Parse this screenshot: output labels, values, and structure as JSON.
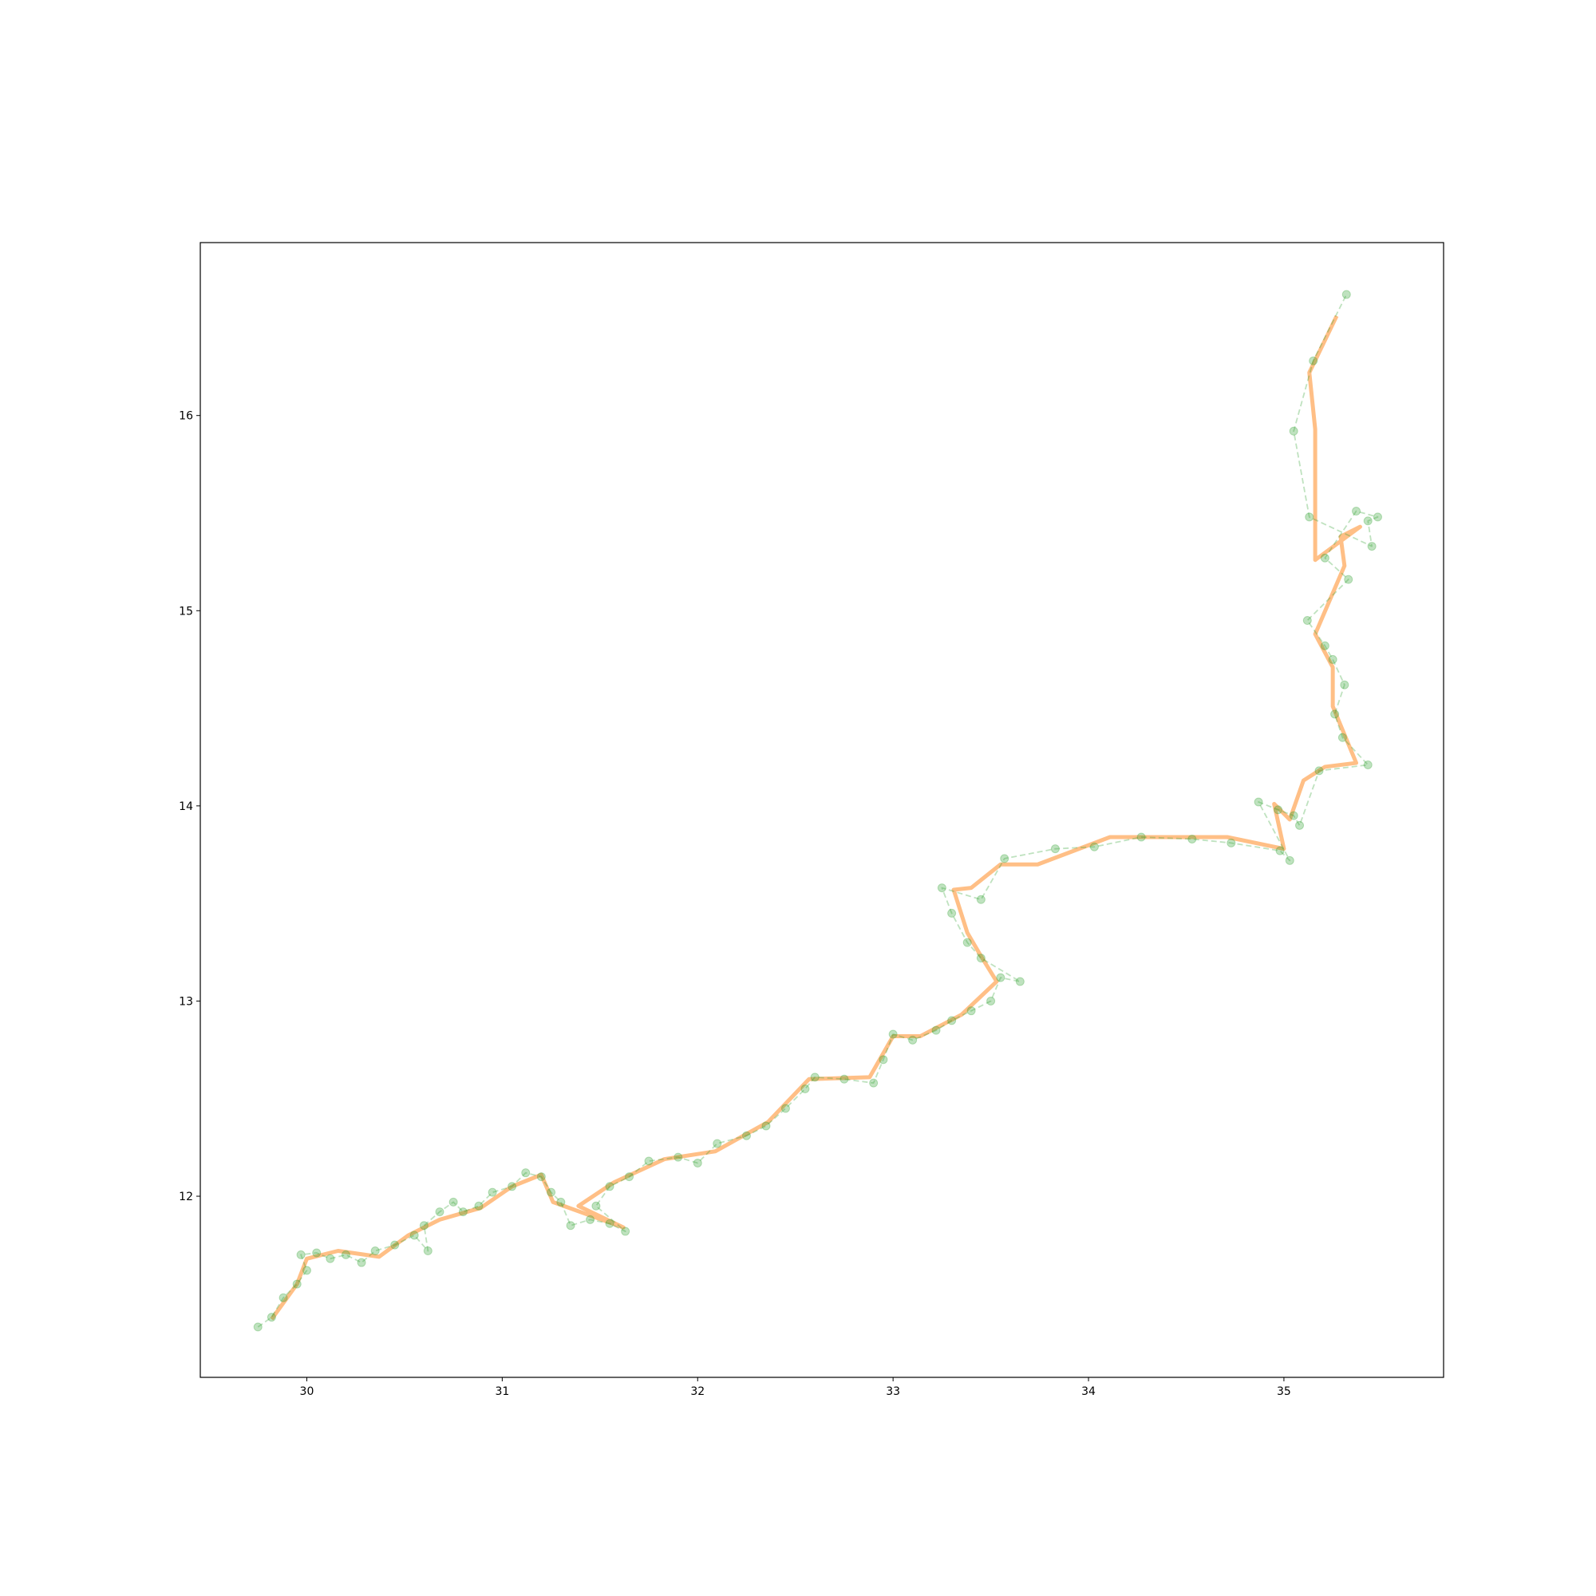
{
  "chart_data": {
    "type": "line",
    "xlim": [
      29.455,
      35.817
    ],
    "ylim": [
      11.072,
      16.886
    ],
    "xticks": [
      30,
      31,
      32,
      33,
      34,
      35
    ],
    "yticks": [
      12,
      13,
      14,
      15,
      16
    ],
    "series": [
      {
        "color": "#ff7f0e",
        "alpha": 0.5,
        "linestyle": "solid",
        "x": [
          29.82,
          29.95,
          30.0,
          30.16,
          30.37,
          30.52,
          30.68,
          30.89,
          31.05,
          31.2,
          31.26,
          31.62,
          31.39,
          31.57,
          31.83,
          32.09,
          32.36,
          32.57,
          32.88,
          33.0,
          33.14,
          33.35,
          33.53,
          33.45,
          33.38,
          33.31,
          33.4,
          33.55,
          33.74,
          34.11,
          34.71,
          35.0,
          34.95,
          35.03,
          35.1,
          35.21,
          35.37,
          35.25,
          35.25,
          35.16,
          35.31,
          35.29,
          35.39,
          35.16,
          35.16,
          35.13,
          35.27
        ],
        "values": [
          11.37,
          11.55,
          11.68,
          11.72,
          11.69,
          11.8,
          11.88,
          11.94,
          12.05,
          12.11,
          11.97,
          11.84,
          11.95,
          12.07,
          12.19,
          12.23,
          12.38,
          12.6,
          12.61,
          12.82,
          12.82,
          12.93,
          13.1,
          13.23,
          13.35,
          13.57,
          13.58,
          13.7,
          13.7,
          13.84,
          13.84,
          13.78,
          14.01,
          13.93,
          14.13,
          14.2,
          14.22,
          14.51,
          14.71,
          14.88,
          15.23,
          15.38,
          15.43,
          15.26,
          15.93,
          16.22,
          16.51
        ]
      },
      {
        "color": "#2ca02c",
        "alpha": 0.3,
        "linestyle": "dashed",
        "marker": "o",
        "x": [
          29.75,
          29.82,
          29.88,
          29.95,
          30.0,
          29.97,
          30.05,
          30.12,
          30.2,
          30.28,
          30.35,
          30.45,
          30.55,
          30.62,
          30.6,
          30.68,
          30.75,
          30.8,
          30.88,
          30.95,
          31.05,
          31.12,
          31.2,
          31.25,
          31.3,
          31.35,
          31.45,
          31.55,
          31.63,
          31.48,
          31.55,
          31.65,
          31.75,
          31.9,
          32.0,
          32.1,
          32.25,
          32.35,
          32.45,
          32.55,
          32.6,
          32.75,
          32.9,
          32.95,
          33.0,
          33.1,
          33.22,
          33.3,
          33.4,
          33.5,
          33.55,
          33.65,
          33.45,
          33.38,
          33.3,
          33.25,
          33.45,
          33.57,
          33.83,
          34.03,
          34.27,
          34.53,
          34.73,
          34.98,
          35.03,
          34.87,
          34.97,
          35.05,
          35.08,
          35.18,
          35.43,
          35.3,
          35.26,
          35.31,
          35.25,
          35.21,
          35.12,
          35.33,
          35.21,
          35.37,
          35.48,
          35.43,
          35.45,
          35.13,
          35.05,
          35.15,
          35.32
        ],
        "values": [
          11.33,
          11.38,
          11.48,
          11.55,
          11.62,
          11.7,
          11.71,
          11.68,
          11.7,
          11.66,
          11.72,
          11.75,
          11.8,
          11.72,
          11.85,
          11.92,
          11.97,
          11.92,
          11.95,
          12.02,
          12.05,
          12.12,
          12.1,
          12.02,
          11.97,
          11.85,
          11.88,
          11.86,
          11.82,
          11.95,
          12.05,
          12.1,
          12.18,
          12.2,
          12.17,
          12.27,
          12.31,
          12.36,
          12.45,
          12.55,
          12.61,
          12.6,
          12.58,
          12.7,
          12.83,
          12.8,
          12.85,
          12.9,
          12.95,
          13.0,
          13.12,
          13.1,
          13.22,
          13.3,
          13.45,
          13.58,
          13.52,
          13.73,
          13.78,
          13.79,
          13.84,
          13.83,
          13.81,
          13.77,
          13.72,
          14.02,
          13.98,
          13.95,
          13.9,
          14.18,
          14.21,
          14.35,
          14.47,
          14.62,
          14.75,
          14.82,
          14.95,
          15.16,
          15.27,
          15.51,
          15.48,
          15.46,
          15.33,
          15.48,
          15.92,
          16.28,
          16.62
        ]
      }
    ]
  }
}
